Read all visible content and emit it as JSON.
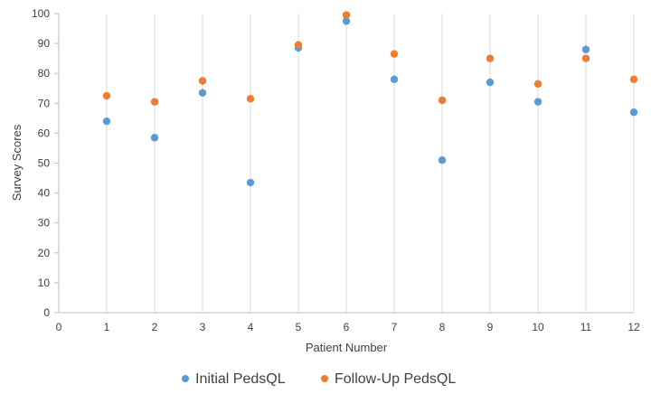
{
  "chart_data": {
    "type": "scatter",
    "title": "",
    "xlabel": "Patient Number",
    "ylabel": "Survey Scores",
    "xlim": [
      0,
      12
    ],
    "ylim": [
      0,
      100
    ],
    "xticks": [
      0,
      1,
      2,
      3,
      4,
      5,
      6,
      7,
      8,
      9,
      10,
      11,
      12
    ],
    "yticks": [
      0,
      10,
      20,
      30,
      40,
      50,
      60,
      70,
      80,
      90,
      100
    ],
    "grid": "vertical",
    "legend_position": "bottom",
    "series": [
      {
        "name": "Initial PedsQL",
        "color": "#5B9BD5",
        "x": [
          1,
          2,
          3,
          4,
          5,
          6,
          7,
          8,
          9,
          10,
          11,
          12
        ],
        "y": [
          64,
          58.5,
          73.5,
          43.5,
          88.5,
          97.5,
          78,
          51,
          77,
          70.5,
          88,
          67
        ]
      },
      {
        "name": "Follow-Up PedsQL",
        "color": "#ED7D31",
        "x": [
          1,
          2,
          3,
          4,
          5,
          6,
          7,
          8,
          9,
          10,
          11,
          12
        ],
        "y": [
          72.5,
          70.5,
          77.5,
          71.5,
          89.5,
          99.5,
          86.5,
          71,
          85,
          76.5,
          85,
          78
        ]
      }
    ]
  }
}
